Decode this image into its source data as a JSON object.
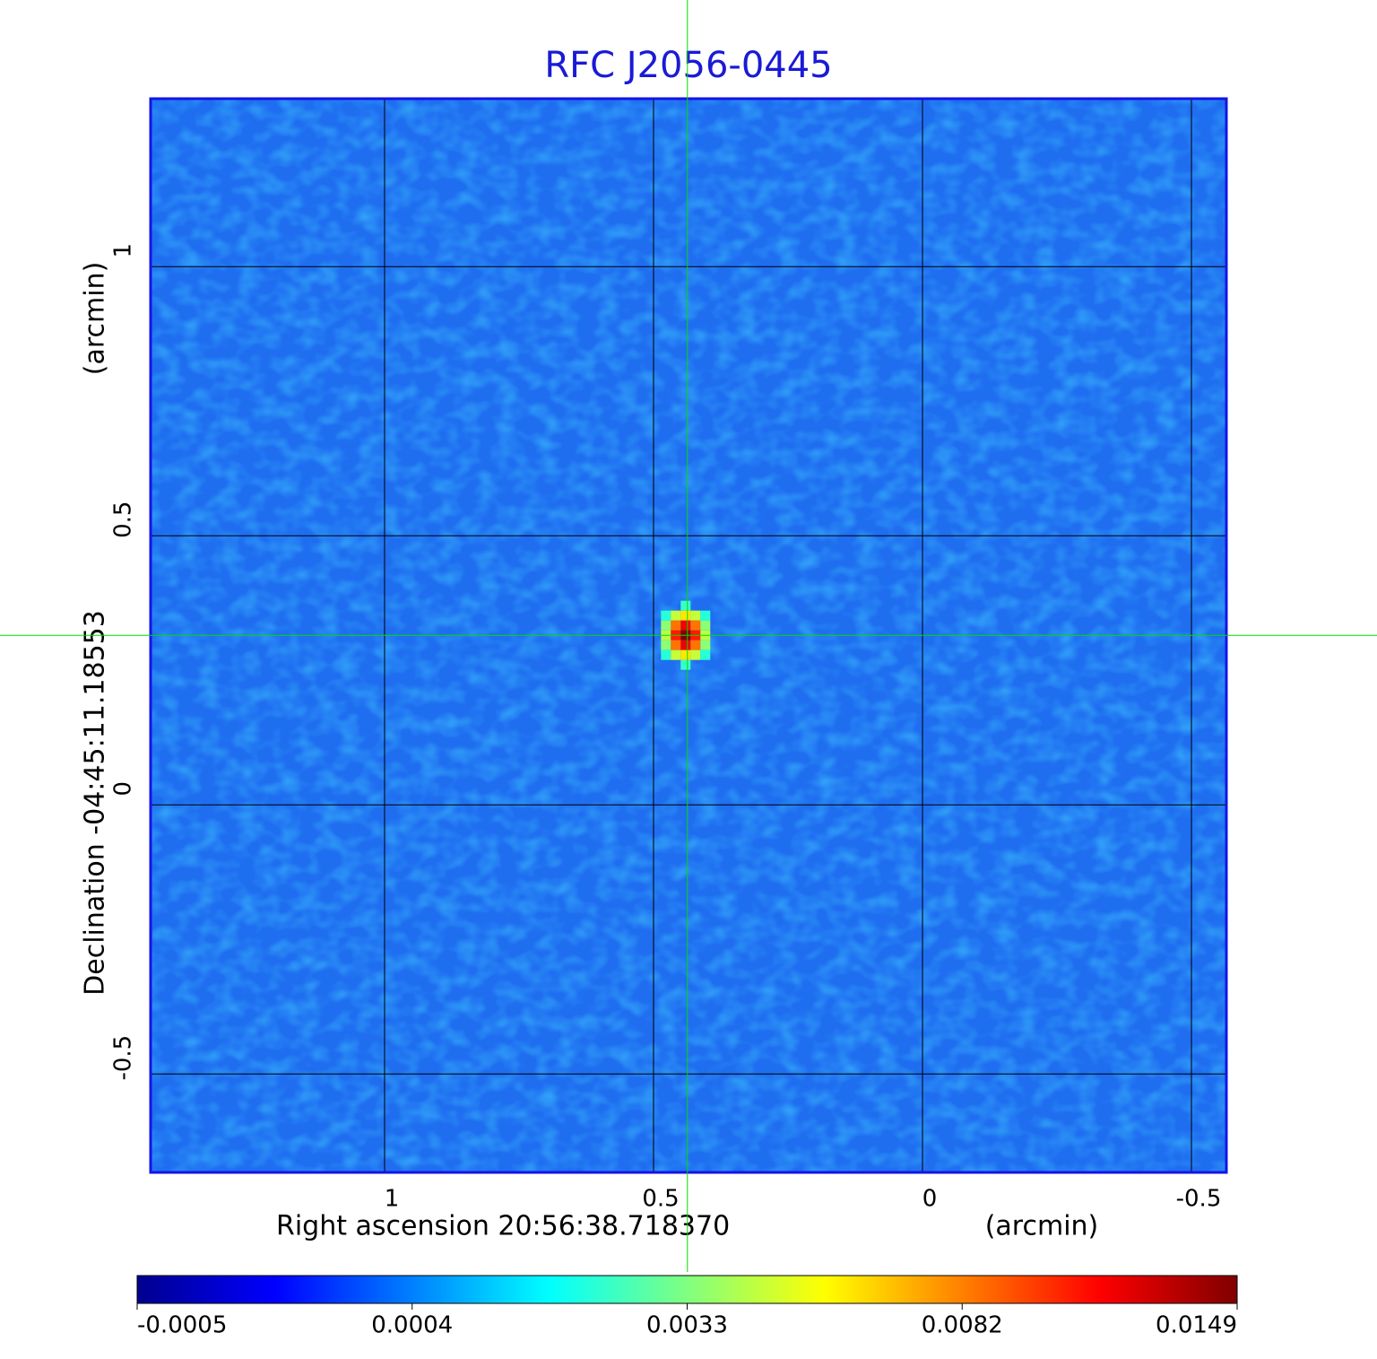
{
  "chart_data": {
    "type": "image",
    "title": "RFC J2056-0445",
    "xlabel": "Right ascension  20:56:38.718370",
    "ylabel": "Declination  -04:45:11.18553",
    "xunit": "(arcmin)",
    "yunit": "(arcmin)",
    "xlim": [
      1.435,
      -0.565
    ],
    "ylim": [
      -0.683,
      1.312
    ],
    "xticks": [
      1.0,
      0.5,
      0.0,
      -0.5
    ],
    "yticks": [
      -0.5,
      0.0,
      0.5,
      1.0
    ],
    "grid": true,
    "crosshair": {
      "x": 0.437,
      "y": 0.315,
      "color": "#00dd00"
    },
    "source": {
      "x": 0.437,
      "y": 0.315,
      "peak": 0.0149
    },
    "colormap": [
      "#00008f",
      "#0000ff",
      "#0080ff",
      "#00ffff",
      "#80ff80",
      "#ffff00",
      "#ff8000",
      "#ff0000",
      "#800000"
    ],
    "colorbar_ticks": [
      -0.0005,
      0.0004,
      0.0033,
      0.0082,
      0.0149
    ],
    "title_color": "#1a1ad6",
    "frame_color": "#1414e6",
    "background_color": "#1f6ef0"
  }
}
